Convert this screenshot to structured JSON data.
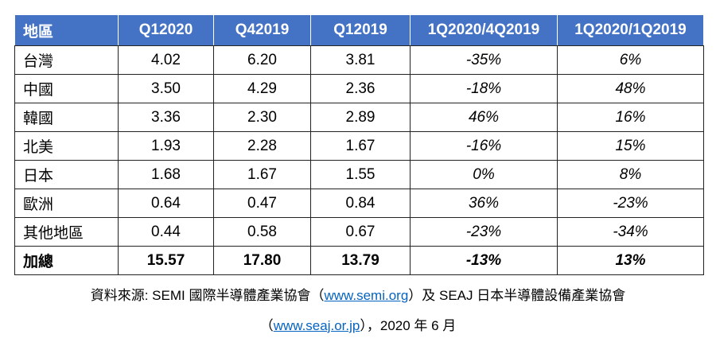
{
  "table": {
    "header": [
      "地區",
      "Q12020",
      "Q42019",
      "Q12019",
      "1Q2020/4Q2019",
      "1Q2020/1Q2019"
    ],
    "rows": [
      [
        "台灣",
        "4.02",
        "6.20",
        "3.81",
        "-35%",
        "6%"
      ],
      [
        "中國",
        "3.50",
        "4.29",
        "2.36",
        "-18%",
        "48%"
      ],
      [
        "韓國",
        "3.36",
        "2.30",
        "2.89",
        "46%",
        "16%"
      ],
      [
        "北美",
        "1.93",
        "2.28",
        "1.67",
        "-16%",
        "15%"
      ],
      [
        "日本",
        "1.68",
        "1.67",
        "1.55",
        "0%",
        "8%"
      ],
      [
        "歐洲",
        "0.64",
        "0.47",
        "0.84",
        "36%",
        "-23%"
      ],
      [
        "其他地區",
        "0.44",
        "0.58",
        "0.67",
        "-23%",
        "-34%"
      ],
      [
        "加總",
        "15.57",
        "17.80",
        "13.79",
        "-13%",
        "13%"
      ]
    ]
  },
  "source": {
    "line1": [
      "資料來源: SEMI  國際半導體產業協會（",
      "www.semi.org",
      "）及  SEAJ  日本半導體設備產業協會"
    ],
    "line2": [
      "（",
      "www.seaj.or.jp",
      "），2020 年 6 月"
    ]
  }
}
